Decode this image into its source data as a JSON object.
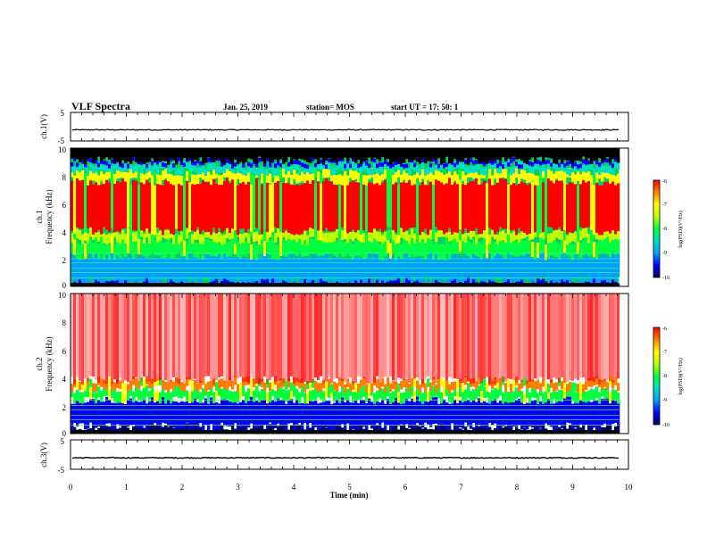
{
  "header": {
    "title": "VLF Spectra",
    "date": "Jan. 25, 2019",
    "station": "station= MOS",
    "start": "start  UT  =   17: 50: 1"
  },
  "chart_data": [
    {
      "type": "line",
      "name": "ch1-waveform",
      "ylabel": "ch.1(V)",
      "ylim": [
        -5,
        5
      ],
      "yticks": [
        "5",
        "-5"
      ],
      "xlim": [
        0,
        10
      ],
      "series": [
        {
          "values_description": "flat trace near -1 V",
          "level": -1.1
        }
      ]
    },
    {
      "type": "heatmap",
      "name": "ch1-spectrogram",
      "ylabel_top": "ch.1",
      "ylabel": "Frequency (kHz)",
      "ylim": [
        0,
        10
      ],
      "yticks": [
        "0",
        "2",
        "4",
        "6",
        "8",
        "10"
      ],
      "xlim": [
        0,
        10
      ],
      "data_end_min": 9.83,
      "colorbar": {
        "label": "log(PSD)(V²/Hz)",
        "range": [
          -10,
          -6
        ],
        "ticks": [
          "-6",
          "-7",
          "-8",
          "-9",
          "-10"
        ]
      }
    },
    {
      "type": "heatmap",
      "name": "ch2-spectrogram",
      "ylabel_top": "ch.2",
      "ylabel": "Frequency (kHz)",
      "ylim": [
        0,
        10
      ],
      "yticks": [
        "0",
        "2",
        "4",
        "6",
        "8",
        "10"
      ],
      "xlim": [
        0,
        10
      ],
      "data_end_min": 9.83,
      "colorbar": {
        "label": "log(PSD)(V²/Hz)",
        "range": [
          -10,
          -6
        ],
        "ticks": [
          "-6",
          "-7",
          "-8",
          "-9",
          "-10"
        ]
      }
    },
    {
      "type": "line",
      "name": "ch3-waveform",
      "ylabel": "ch.3(V)",
      "ylim": [
        -5,
        5
      ],
      "yticks": [
        "5",
        "-5"
      ],
      "xlim": [
        0,
        10
      ],
      "series": [
        {
          "values_description": "flat trace near -1 V",
          "level": -1.1
        }
      ]
    }
  ],
  "xaxis": {
    "label": "Time  (min)",
    "ticks": [
      "0",
      "1",
      "2",
      "3",
      "4",
      "5",
      "6",
      "7",
      "8",
      "9",
      "10"
    ]
  },
  "colors": {
    "colormap": [
      "#000060",
      "#0000ff",
      "#00a0ff",
      "#00e0c0",
      "#00ff40",
      "#c0ff00",
      "#ffff00",
      "#ff8000",
      "#ff0000"
    ],
    "top_band": "#000000"
  }
}
